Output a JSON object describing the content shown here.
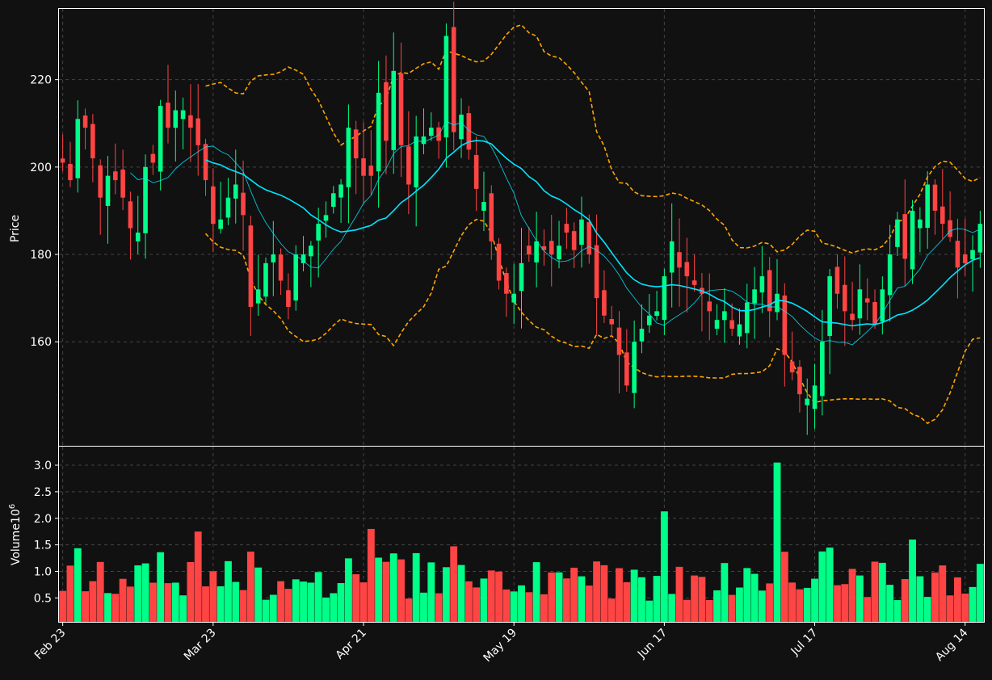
{
  "chart_data": {
    "type": "candlestick",
    "price_panel": {
      "ylabel": "Price",
      "y_ticks": [
        160,
        180,
        200,
        220
      ],
      "ylim": [
        136.2,
        236.2
      ]
    },
    "volume_panel": {
      "ylabel": "Volume",
      "ylabel_exponent": "10",
      "ylabel_exponent_power": "6",
      "y_ticks": [
        "0.5",
        "1.0",
        "1.5",
        "2.0",
        "2.5",
        "3.0"
      ],
      "y_tick_values": [
        0.5,
        1.0,
        1.5,
        2.0,
        2.5,
        3.0
      ],
      "ylim": [
        0.05,
        3.35
      ]
    },
    "x_ticks": [
      {
        "label": "Feb 23",
        "index": 0
      },
      {
        "label": "Mar 23",
        "index": 20
      },
      {
        "label": "Apr 21",
        "index": 40
      },
      {
        "label": "May 19",
        "index": 60
      },
      {
        "label": "Jun 17",
        "index": 80
      },
      {
        "label": "Jul 17",
        "index": 100
      },
      {
        "label": "Aug 14",
        "index": 120
      }
    ],
    "grid": true,
    "colors": {
      "up": "#00ff88",
      "down": "#ff4444",
      "ma_fast": "#00e5ff",
      "ma_slow": "#00e5ff",
      "bollinger": "#ffa500",
      "background": "#111111",
      "panel_border": "#ffffff"
    },
    "ohlc_close_approx": [
      201,
      197,
      211,
      209,
      202,
      193,
      198,
      197,
      193,
      186,
      185,
      200,
      201,
      214,
      209,
      213,
      213,
      209,
      205,
      197,
      187,
      188,
      193,
      196,
      189,
      168,
      172,
      178,
      180,
      174,
      168,
      180,
      180,
      182,
      187,
      189,
      194,
      196,
      209,
      202,
      198,
      198,
      217,
      206,
      222,
      205,
      196,
      207,
      207,
      209,
      206,
      230,
      208,
      212,
      204,
      195,
      192,
      183,
      174,
      171,
      171,
      178,
      180,
      183,
      181,
      180,
      182,
      185,
      181,
      188,
      180,
      170,
      166,
      164,
      157,
      150,
      160,
      163,
      166,
      167,
      175,
      183,
      177,
      175,
      173,
      171,
      167,
      165,
      167,
      163,
      164,
      169,
      172,
      175,
      167,
      171,
      157,
      153,
      148,
      147,
      150,
      160,
      175,
      171,
      167,
      165,
      172,
      169,
      164,
      172,
      180,
      188,
      179,
      190,
      188,
      196,
      190,
      187,
      184,
      177,
      178,
      181,
      187
    ]
  }
}
